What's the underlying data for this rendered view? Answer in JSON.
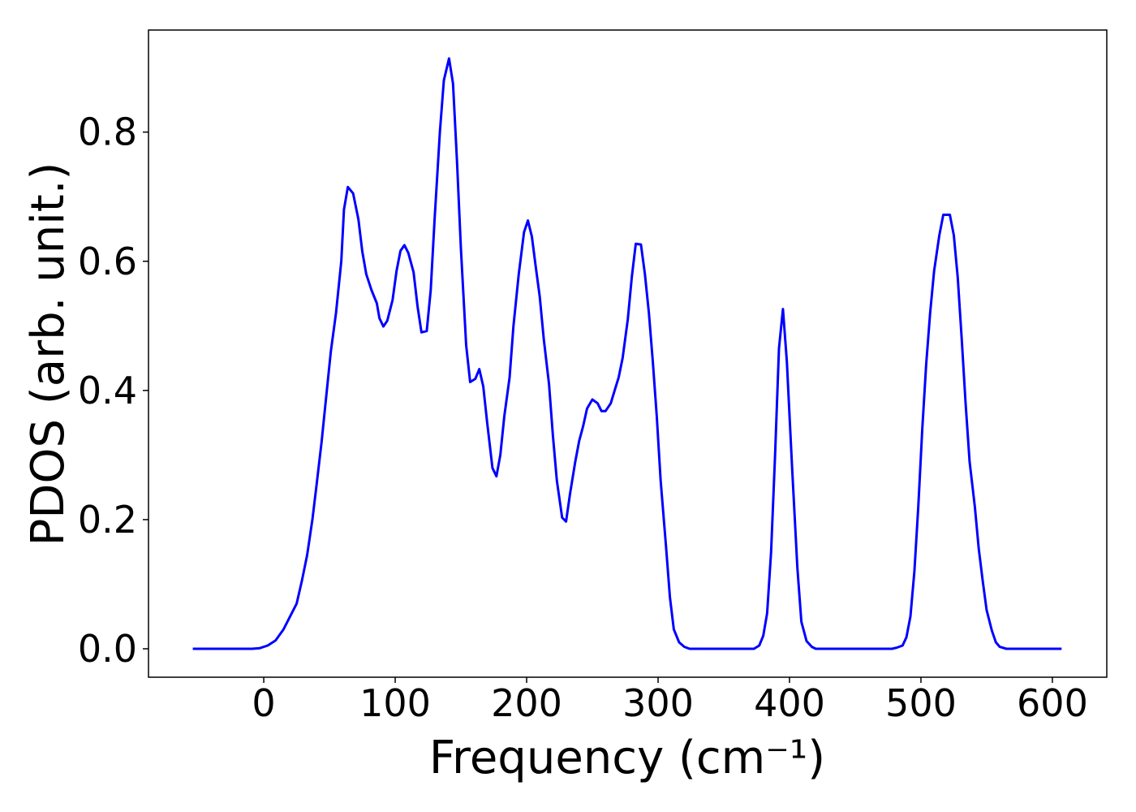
{
  "chart_data": {
    "type": "line",
    "xlabel": "Frequency (cm⁻¹)",
    "ylabel": "PDOS (arb. unit.)",
    "xlim": [
      -87.7,
      641.4
    ],
    "ylim": [
      -0.044,
      0.958
    ],
    "xticks": [
      0,
      100,
      200,
      300,
      400,
      500,
      600
    ],
    "yticks": [
      {
        "value": 0,
        "label": "0.0"
      },
      0.2,
      0.4,
      0.6,
      0.8
    ],
    "grid": false,
    "series": [
      {
        "color": "#0000ff",
        "x": [
          -54,
          -40,
          -25,
          -15,
          -9,
          -3,
          3,
          9,
          15,
          20,
          25,
          29,
          33,
          37,
          40,
          44,
          48,
          51,
          55,
          59,
          61,
          64,
          68,
          72,
          75,
          78,
          82,
          86,
          88,
          91,
          94,
          98,
          101,
          104,
          107,
          110,
          114,
          117,
          120,
          124,
          127,
          130,
          134,
          137,
          141,
          144,
          147,
          150,
          154,
          157,
          161,
          164,
          167,
          170,
          174,
          177,
          180,
          183,
          187,
          190,
          194,
          198,
          201,
          204,
          207,
          210,
          213,
          217,
          220,
          223,
          227,
          230,
          233,
          237,
          240,
          243,
          246,
          250,
          254,
          257,
          260,
          264,
          267,
          270,
          273,
          277,
          280,
          283,
          287,
          290,
          293,
          296,
          299,
          302,
          306,
          309,
          312,
          316,
          320,
          324,
          340,
          355,
          373,
          377,
          380,
          383,
          386,
          389,
          392,
          395,
          398,
          402,
          406,
          409,
          413,
          417,
          420,
          440,
          460,
          478,
          482,
          486,
          489,
          492,
          495,
          498,
          501,
          504,
          507,
          510,
          514,
          517,
          522,
          525,
          528,
          531,
          534,
          537,
          541,
          544,
          547,
          550,
          554,
          557,
          560,
          565,
          585,
          607
        ],
        "values": [
          0,
          0,
          0,
          0,
          0,
          0.001,
          0.005,
          0.013,
          0.03,
          0.05,
          0.07,
          0.105,
          0.145,
          0.2,
          0.25,
          0.32,
          0.4,
          0.46,
          0.52,
          0.6,
          0.68,
          0.715,
          0.705,
          0.665,
          0.615,
          0.58,
          0.555,
          0.535,
          0.512,
          0.499,
          0.508,
          0.54,
          0.585,
          0.616,
          0.625,
          0.613,
          0.583,
          0.53,
          0.49,
          0.492,
          0.555,
          0.665,
          0.8,
          0.88,
          0.914,
          0.875,
          0.755,
          0.62,
          0.47,
          0.413,
          0.418,
          0.433,
          0.406,
          0.35,
          0.28,
          0.267,
          0.3,
          0.36,
          0.42,
          0.5,
          0.58,
          0.645,
          0.663,
          0.638,
          0.59,
          0.545,
          0.48,
          0.41,
          0.33,
          0.26,
          0.203,
          0.197,
          0.24,
          0.29,
          0.322,
          0.345,
          0.372,
          0.386,
          0.38,
          0.368,
          0.368,
          0.38,
          0.4,
          0.42,
          0.45,
          0.51,
          0.575,
          0.627,
          0.626,
          0.58,
          0.52,
          0.445,
          0.36,
          0.26,
          0.16,
          0.08,
          0.03,
          0.01,
          0.003,
          0,
          0,
          0,
          0,
          0.005,
          0.02,
          0.055,
          0.15,
          0.3,
          0.465,
          0.526,
          0.445,
          0.28,
          0.125,
          0.042,
          0.012,
          0.003,
          0,
          0,
          0,
          0,
          0.002,
          0.005,
          0.018,
          0.05,
          0.12,
          0.22,
          0.34,
          0.44,
          0.52,
          0.585,
          0.64,
          0.672,
          0.672,
          0.64,
          0.575,
          0.48,
          0.38,
          0.29,
          0.22,
          0.155,
          0.105,
          0.06,
          0.028,
          0.01,
          0.003,
          0,
          0,
          0
        ]
      }
    ]
  }
}
